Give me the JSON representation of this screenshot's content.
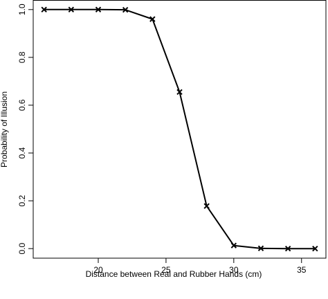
{
  "chart_data": {
    "type": "line",
    "title": "",
    "xlabel": "Distance between Real and Rubber Hands (cm)",
    "ylabel": "Probability of Illusion",
    "xlim": [
      15.2,
      36.8
    ],
    "ylim": [
      -0.04,
      1.04
    ],
    "xticks": [
      20,
      25,
      30,
      35
    ],
    "yticks": [
      0.0,
      0.2,
      0.4,
      0.6,
      0.8,
      1.0
    ],
    "ytick_labels": [
      "0.0",
      "0.2",
      "0.4",
      "0.6",
      "0.8",
      "1.0"
    ],
    "marker": "x",
    "grid": false,
    "legend": "none",
    "series": [
      {
        "x": [
          16,
          18,
          20,
          22,
          24,
          26,
          28,
          30,
          32,
          34,
          36
        ],
        "y": [
          1.0,
          1.0,
          1.0,
          0.999,
          0.96,
          0.655,
          0.178,
          0.013,
          0.001,
          0.0,
          0.0
        ]
      }
    ]
  },
  "colors": {
    "line": "#000000",
    "axis": "#000000",
    "background": "#ffffff"
  }
}
